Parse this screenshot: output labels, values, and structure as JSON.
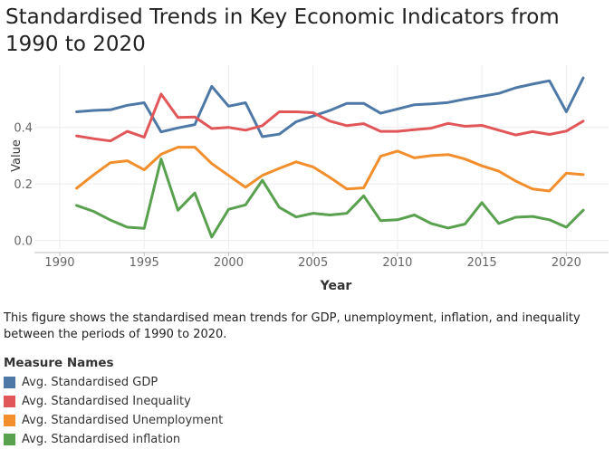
{
  "chart_data": {
    "type": "line",
    "title": "Standardised Trends in Key Economic Indicators from 1990 to 2020",
    "xlabel": "Year",
    "ylabel": "Value",
    "xlim": [
      1988.5,
      2022.5
    ],
    "ylim": [
      -0.03,
      0.62
    ],
    "xticks": [
      1990,
      1995,
      2000,
      2005,
      2010,
      2015,
      2020
    ],
    "yticks": [
      0.0,
      0.2,
      0.4
    ],
    "ytick_labels": [
      "0.0",
      "0.2",
      "0.4"
    ],
    "grid": true,
    "x": [
      1991,
      1992,
      1993,
      1994,
      1995,
      1996,
      1997,
      1998,
      1999,
      2000,
      2001,
      2002,
      2003,
      2004,
      2005,
      2006,
      2007,
      2008,
      2009,
      2010,
      2011,
      2012,
      2013,
      2014,
      2015,
      2016,
      2017,
      2018,
      2019,
      2020,
      2021
    ],
    "series": [
      {
        "name": "Avg. Standardised GDP",
        "color": "#4e79a7",
        "values": [
          0.455,
          0.46,
          0.462,
          0.478,
          0.487,
          0.384,
          0.398,
          0.41,
          0.545,
          0.475,
          0.487,
          0.367,
          0.376,
          0.42,
          0.44,
          0.46,
          0.485,
          0.485,
          0.45,
          0.465,
          0.48,
          0.483,
          0.488,
          0.5,
          0.51,
          0.52,
          0.54,
          0.553,
          0.565,
          0.455,
          0.575
        ]
      },
      {
        "name": "Avg. Standardised Inequality",
        "color": "#e15759",
        "values": [
          0.37,
          0.36,
          0.352,
          0.386,
          0.365,
          0.518,
          0.435,
          0.437,
          0.396,
          0.4,
          0.39,
          0.406,
          0.455,
          0.455,
          0.452,
          0.422,
          0.406,
          0.413,
          0.386,
          0.386,
          0.392,
          0.397,
          0.414,
          0.404,
          0.407,
          0.39,
          0.373,
          0.385,
          0.375,
          0.387,
          0.422
        ]
      },
      {
        "name": "Avg. Standardised Unemployment",
        "color": "#f28e2b",
        "values": [
          0.185,
          0.232,
          0.275,
          0.282,
          0.25,
          0.305,
          0.33,
          0.33,
          0.272,
          0.23,
          0.188,
          0.23,
          0.255,
          0.278,
          0.26,
          0.223,
          0.182,
          0.186,
          0.298,
          0.316,
          0.292,
          0.3,
          0.304,
          0.288,
          0.264,
          0.245,
          0.21,
          0.182,
          0.175,
          0.238,
          0.233
        ]
      },
      {
        "name": "Avg. Standardised inflation",
        "color": "#59a14f",
        "values": [
          0.124,
          0.103,
          0.072,
          0.047,
          0.043,
          0.288,
          0.107,
          0.168,
          0.012,
          0.11,
          0.126,
          0.213,
          0.117,
          0.083,
          0.096,
          0.09,
          0.096,
          0.158,
          0.07,
          0.073,
          0.09,
          0.06,
          0.044,
          0.058,
          0.134,
          0.06,
          0.082,
          0.085,
          0.073,
          0.047,
          0.107
        ]
      }
    ],
    "caption": "This figure shows the standardised mean trends for GDP, unemployment, inflation, and inequality between the periods of 1990 to 2020.",
    "legend_title": "Measure Names",
    "legend_position": "bottom-left"
  }
}
